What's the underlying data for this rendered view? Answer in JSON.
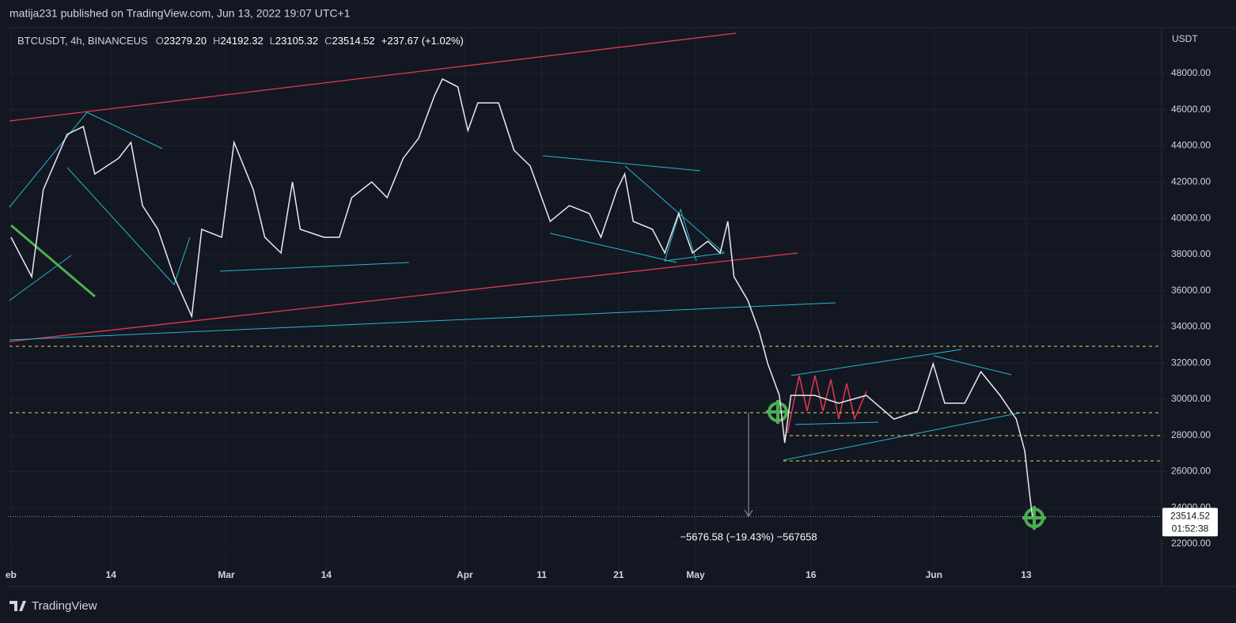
{
  "header": {
    "publisher": "matija231 published on TradingView.com, Jun 13, 2022 19:07 UTC+1"
  },
  "legend": {
    "symbol": "BTCUSDT, 4h, BINANCEUS",
    "ohlc": [
      {
        "label": "O",
        "value": "23279.20"
      },
      {
        "label": "H",
        "value": "24192.32"
      },
      {
        "label": "L",
        "value": "23105.32"
      },
      {
        "label": "C",
        "value": "23514.52"
      }
    ],
    "change": "+237.67 (+1.02%)"
  },
  "chart_data": {
    "type": "line",
    "y_axis_label": "USDT",
    "series": [
      {
        "name": "BTCUSDT",
        "color": "#e8eaf0",
        "x": [
          32,
          34.7,
          36.2,
          39.3,
          41.4,
          42.9,
          46,
          47.6,
          49.1,
          51.1,
          53.2,
          55.5,
          56.8,
          59.4,
          61,
          63.5,
          65,
          67.1,
          68.6,
          69.6,
          72.7,
          74.7,
          76.3,
          78.9,
          80.9,
          83,
          85,
          87.1,
          88.1,
          90.1,
          91.4,
          92.7,
          95.4,
          97.4,
          99.5,
          102.1,
          104.6,
          107.2,
          108.7,
          110.8,
          111.8,
          112.9,
          115.4,
          117,
          118.8,
          120.6,
          122.6,
          124.2,
          125.2,
          126,
          127.8,
          129.3,
          130.4,
          131.9,
          132.6,
          133.4,
          136.5,
          139.6,
          143.2,
          146.8,
          149.9,
          151.9,
          153.4,
          156,
          158.1,
          160.6,
          162.7,
          163.8,
          164.5,
          164.8
        ],
        "values": [
          38950,
          36770,
          41580,
          44640,
          45070,
          42450,
          43320,
          44200,
          40700,
          39390,
          36770,
          34580,
          39390,
          38950,
          44200,
          41580,
          38950,
          38080,
          42010,
          39390,
          38950,
          38950,
          41140,
          42010,
          41140,
          43320,
          44420,
          46820,
          47700,
          47260,
          44850,
          46380,
          46380,
          43760,
          42890,
          39830,
          40700,
          40260,
          38950,
          41580,
          42450,
          39830,
          39390,
          38080,
          40260,
          38080,
          38730,
          38080,
          39830,
          36770,
          35460,
          33710,
          31960,
          30210,
          27590,
          30210,
          30210,
          29780,
          30210,
          28900,
          29340,
          31960,
          29780,
          29780,
          31520,
          30210,
          28900,
          27150,
          24530,
          23514.52
        ]
      }
    ],
    "xlim": [
      31.6,
      181.6
    ],
    "xticks": [
      {
        "value": 32,
        "label": "eb"
      },
      {
        "value": 45,
        "label": "14"
      },
      {
        "value": 60,
        "label": "Mar"
      },
      {
        "value": 73,
        "label": "14"
      },
      {
        "value": 91,
        "label": "Apr"
      },
      {
        "value": 101,
        "label": "11"
      },
      {
        "value": 111,
        "label": "21"
      },
      {
        "value": 121,
        "label": "May"
      },
      {
        "value": 136,
        "label": "16"
      },
      {
        "value": 152,
        "label": "Jun"
      },
      {
        "value": 164,
        "label": "13"
      }
    ],
    "ylim": [
      19640,
      50535
    ],
    "yticks": [
      {
        "value": 22000,
        "label": "22000.00"
      },
      {
        "value": 24000,
        "label": "24000.00"
      },
      {
        "value": 26000,
        "label": "26000.00"
      },
      {
        "value": 28000,
        "label": "28000.00"
      },
      {
        "value": 30000,
        "label": "30000.00"
      },
      {
        "value": 32000,
        "label": "32000.00"
      },
      {
        "value": 34000,
        "label": "34000.00"
      },
      {
        "value": 36000,
        "label": "36000.00"
      },
      {
        "value": 38000,
        "label": "38000.00"
      },
      {
        "value": 40000,
        "label": "40000.00"
      },
      {
        "value": 42000,
        "label": "42000.00"
      },
      {
        "value": 44000,
        "label": "44000.00"
      },
      {
        "value": 46000,
        "label": "46000.00"
      },
      {
        "value": 48000,
        "label": "48000.00"
      }
    ],
    "grid": true,
    "last_price": 23514.52,
    "countdown": "01:52:38",
    "measurement": "−5676.58 (−19.43%) −567658"
  },
  "footer": {
    "brand": "TradingView"
  }
}
